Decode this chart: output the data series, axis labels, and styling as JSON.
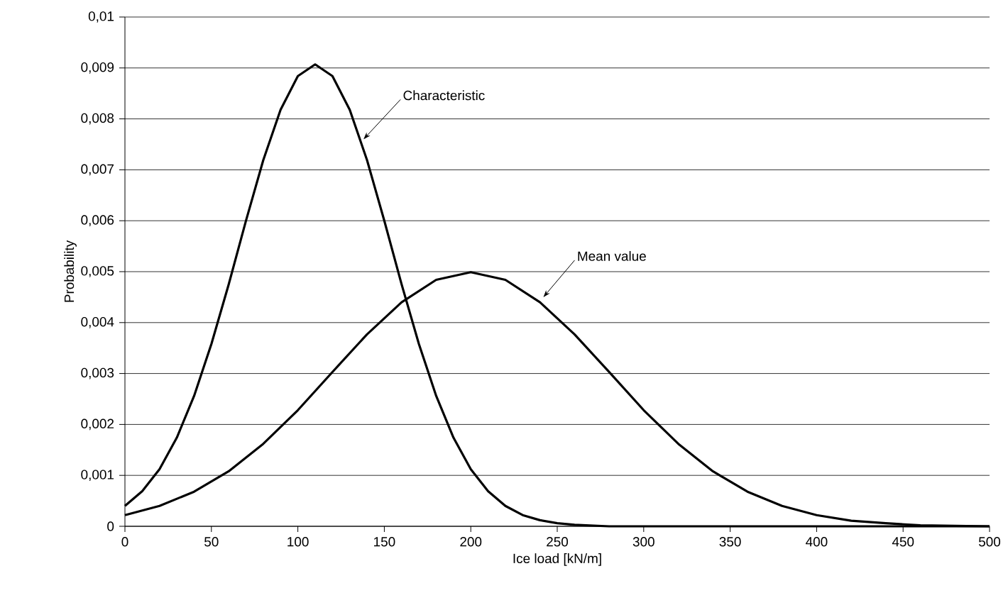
{
  "chart_data": {
    "type": "line",
    "xlabel": "Ice load [kN/m]",
    "ylabel": "Probability",
    "xlim": [
      0,
      500
    ],
    "xticks": [
      0,
      50,
      100,
      150,
      200,
      250,
      300,
      350,
      400,
      450,
      500
    ],
    "ylim": [
      0,
      0.01
    ],
    "yticks": [
      0,
      {
        "value": 0.001,
        "label": "0,001"
      },
      {
        "value": 0.002,
        "label": "0,002"
      },
      {
        "value": 0.003,
        "label": "0,003"
      },
      {
        "value": 0.004,
        "label": "0,004"
      },
      {
        "value": 0.005,
        "label": "0,005"
      },
      {
        "value": 0.006,
        "label": "0,006"
      },
      {
        "value": 0.007,
        "label": "0,007"
      },
      {
        "value": 0.008,
        "label": "0,008"
      },
      {
        "value": 0.009,
        "label": "0,009"
      },
      {
        "value": 0.01,
        "label": "0,01"
      }
    ],
    "grid": "y",
    "series": [
      {
        "color": "#000000",
        "x": [
          0,
          10,
          20,
          30,
          40,
          50,
          60,
          70,
          80,
          90,
          100,
          110,
          120,
          130,
          140,
          150,
          160,
          170,
          180,
          190,
          200,
          210,
          220,
          230,
          240,
          250,
          260,
          280,
          300,
          350,
          400,
          450,
          500
        ],
        "values": [
          0.0004,
          0.00069,
          0.00112,
          0.00174,
          0.00256,
          0.00358,
          0.00475,
          0.006,
          0.00719,
          0.00818,
          0.00884,
          0.00907,
          0.00884,
          0.00818,
          0.00719,
          0.006,
          0.00475,
          0.00358,
          0.00256,
          0.00174,
          0.00112,
          0.00069,
          0.0004,
          0.00022,
          0.00012,
          6e-05,
          3e-05,
          0,
          0,
          0,
          0,
          0,
          0
        ]
      },
      {
        "color": "#000000",
        "x": [
          0,
          20,
          40,
          60,
          80,
          100,
          120,
          140,
          160,
          180,
          200,
          220,
          240,
          260,
          280,
          300,
          320,
          340,
          360,
          380,
          400,
          420,
          440,
          460,
          480,
          500
        ],
        "values": [
          0.00022,
          0.0004,
          0.00068,
          0.00108,
          0.00162,
          0.00228,
          0.00303,
          0.00377,
          0.0044,
          0.00484,
          0.00499,
          0.00484,
          0.0044,
          0.00377,
          0.00303,
          0.00228,
          0.00162,
          0.00108,
          0.00068,
          0.0004,
          0.00022,
          0.00011,
          6e-05,
          2e-05,
          1e-05,
          0
        ]
      }
    ],
    "annotations": [
      {
        "text": "Characteristic",
        "x": 138,
        "y": 0.0076
      },
      {
        "text": "Mean value",
        "x": 242,
        "y": 0.0045
      }
    ]
  }
}
